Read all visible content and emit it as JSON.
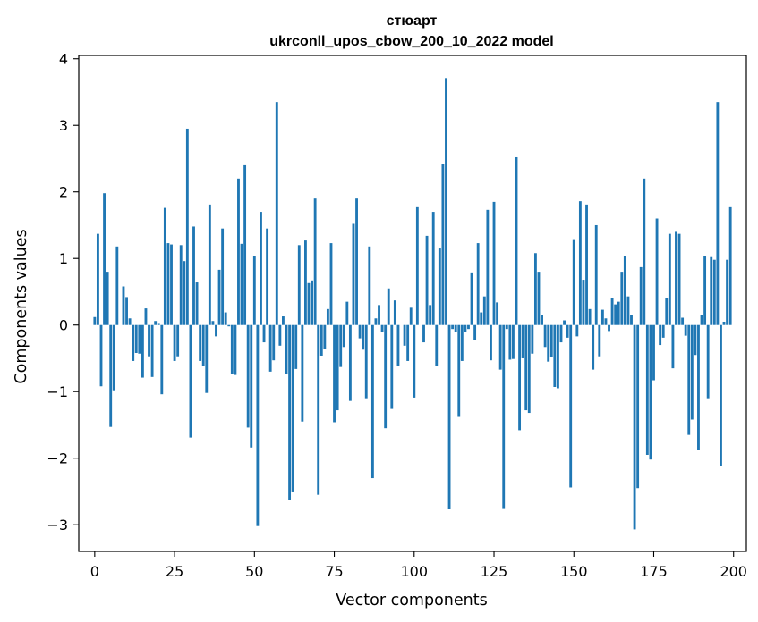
{
  "chart_data": {
    "type": "bar",
    "title": "стюарт",
    "subtitle": "ukrconll_upos_cbow_200_10_2022 model",
    "xlabel": "Vector components",
    "ylabel": "Components values",
    "xlim": [
      -5,
      204
    ],
    "ylim": [
      -3.4,
      4.05
    ],
    "xticks": [
      0,
      25,
      50,
      75,
      100,
      125,
      150,
      175,
      200
    ],
    "xtick_labels": [
      "0",
      "25",
      "50",
      "75",
      "100",
      "125",
      "150",
      "175",
      "200"
    ],
    "yticks": [
      -3,
      -2,
      -1,
      0,
      1,
      2,
      3,
      4
    ],
    "ytick_labels": [
      "−3",
      "−2",
      "−1",
      "0",
      "1",
      "2",
      "3",
      "4"
    ],
    "grid": false,
    "bar_color": "#1f77b4",
    "x": [
      0,
      1,
      2,
      3,
      4,
      5,
      6,
      7,
      8,
      9,
      10,
      11,
      12,
      13,
      14,
      15,
      16,
      17,
      18,
      19,
      20,
      21,
      22,
      23,
      24,
      25,
      26,
      27,
      28,
      29,
      30,
      31,
      32,
      33,
      34,
      35,
      36,
      37,
      38,
      39,
      40,
      41,
      42,
      43,
      44,
      45,
      46,
      47,
      48,
      49,
      50,
      51,
      52,
      53,
      54,
      55,
      56,
      57,
      58,
      59,
      60,
      61,
      62,
      63,
      64,
      65,
      66,
      67,
      68,
      69,
      70,
      71,
      72,
      73,
      74,
      75,
      76,
      77,
      78,
      79,
      80,
      81,
      82,
      83,
      84,
      85,
      86,
      87,
      88,
      89,
      90,
      91,
      92,
      93,
      94,
      95,
      96,
      97,
      98,
      99,
      100,
      101,
      102,
      103,
      104,
      105,
      106,
      107,
      108,
      109,
      110,
      111,
      112,
      113,
      114,
      115,
      116,
      117,
      118,
      119,
      120,
      121,
      122,
      123,
      124,
      125,
      126,
      127,
      128,
      129,
      130,
      131,
      132,
      133,
      134,
      135,
      136,
      137,
      138,
      139,
      140,
      141,
      142,
      143,
      144,
      145,
      146,
      147,
      148,
      149,
      150,
      151,
      152,
      153,
      154,
      155,
      156,
      157,
      158,
      159,
      160,
      161,
      162,
      163,
      164,
      165,
      166,
      167,
      168,
      169,
      170,
      171,
      172,
      173,
      174,
      175,
      176,
      177,
      178,
      179,
      180,
      181,
      182,
      183,
      184,
      185,
      186,
      187,
      188,
      189,
      190,
      191,
      192,
      193,
      194,
      195,
      196,
      197,
      198,
      199
    ],
    "values": [
      0.12,
      1.37,
      -0.92,
      1.98,
      0.8,
      -1.53,
      -0.98,
      1.18,
      0.0,
      0.58,
      0.42,
      0.1,
      -0.54,
      -0.42,
      -0.43,
      -0.79,
      0.25,
      -0.47,
      -0.78,
      0.06,
      0.03,
      -1.04,
      1.76,
      1.23,
      1.21,
      -0.54,
      -0.47,
      1.2,
      0.96,
      2.95,
      -1.69,
      1.48,
      0.64,
      -0.54,
      -0.61,
      -1.02,
      1.81,
      0.06,
      -0.17,
      0.83,
      1.45,
      0.19,
      -0.02,
      -0.74,
      -0.75,
      2.2,
      1.22,
      2.4,
      -1.54,
      -1.84,
      1.04,
      -3.02,
      1.7,
      -0.26,
      1.45,
      -0.7,
      -0.53,
      3.35,
      -0.31,
      0.13,
      -0.73,
      -2.63,
      -2.5,
      -0.66,
      1.2,
      -1.45,
      1.27,
      0.63,
      0.67,
      1.9,
      -2.55,
      -0.46,
      -0.36,
      0.24,
      1.23,
      -1.46,
      -1.28,
      -0.63,
      -0.33,
      0.35,
      -1.14,
      1.52,
      1.9,
      -0.2,
      -0.37,
      -1.1,
      1.18,
      -2.3,
      0.1,
      0.3,
      -0.11,
      -1.55,
      0.55,
      -1.26,
      0.37,
      -0.62,
      0.0,
      -0.31,
      -0.54,
      0.26,
      -1.09,
      1.77,
      0.0,
      -0.26,
      1.34,
      0.3,
      1.7,
      -0.61,
      1.15,
      2.42,
      3.71,
      -2.76,
      -0.06,
      -0.1,
      -1.38,
      -0.54,
      -0.11,
      -0.06,
      0.79,
      -0.23,
      1.23,
      0.19,
      0.43,
      1.73,
      -0.53,
      1.85,
      0.34,
      -0.67,
      -2.75,
      -0.06,
      -0.52,
      -0.51,
      2.52,
      -1.58,
      -0.5,
      -1.28,
      -1.32,
      -0.43,
      1.08,
      0.8,
      0.15,
      -0.33,
      -0.55,
      -0.48,
      -0.93,
      -0.95,
      -0.26,
      0.07,
      -0.19,
      -2.44,
      1.29,
      -0.17,
      1.86,
      0.68,
      1.81,
      0.24,
      -0.67,
      1.5,
      -0.47,
      0.23,
      0.1,
      -0.09,
      0.4,
      0.31,
      0.35,
      0.8,
      1.03,
      0.43,
      0.15,
      -3.07,
      -2.45,
      0.87,
      2.2,
      -1.95,
      -2.02,
      -0.83,
      1.6,
      -0.3,
      -0.19,
      0.4,
      1.37,
      -0.65,
      1.4,
      1.37,
      0.11,
      -0.16,
      -1.65,
      -1.42,
      -0.45,
      -1.87,
      0.15,
      1.03,
      -1.1,
      1.02,
      0.98,
      3.35,
      -2.12,
      0.05,
      0.98,
      1.77
    ]
  }
}
